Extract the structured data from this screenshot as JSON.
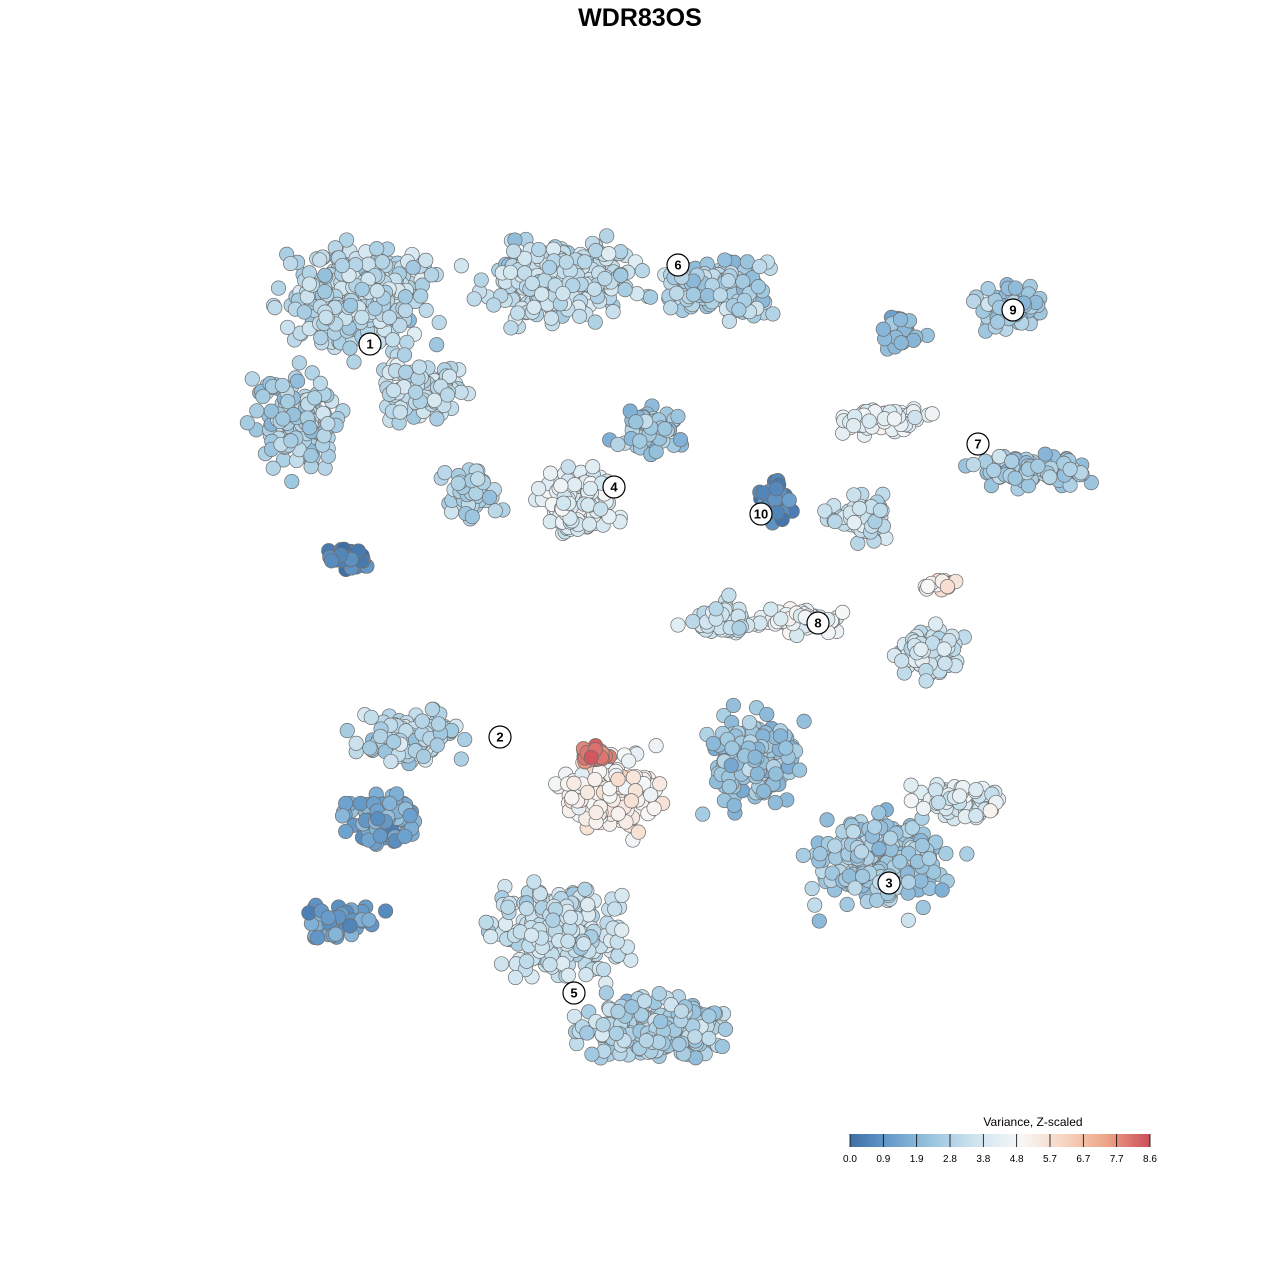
{
  "chart_data": {
    "type": "scatter",
    "title": "WDR83OS",
    "xlabel": "",
    "ylabel": "",
    "color_scale": {
      "title": "Variance, Z-scaled",
      "ticks": [
        "0.0",
        "0.9",
        "1.9",
        "2.8",
        "3.8",
        "4.8",
        "5.7",
        "6.7",
        "7.7",
        "8.6"
      ],
      "min": 0.0,
      "max": 8.6,
      "colors": [
        "#3d6fa6",
        "#6a9fcd",
        "#9fc8e0",
        "#d2e6f0",
        "#f7f7f7",
        "#f7d4c0",
        "#eda488",
        "#cc4c58"
      ]
    },
    "clusters": [
      {
        "label": "1"
      },
      {
        "label": "2"
      },
      {
        "label": "3"
      },
      {
        "label": "4"
      },
      {
        "label": "5"
      },
      {
        "label": "6"
      },
      {
        "label": "7"
      },
      {
        "label": "8"
      },
      {
        "label": "9"
      },
      {
        "label": "10"
      }
    ],
    "grid": false,
    "legend_position": "bottom-right"
  }
}
